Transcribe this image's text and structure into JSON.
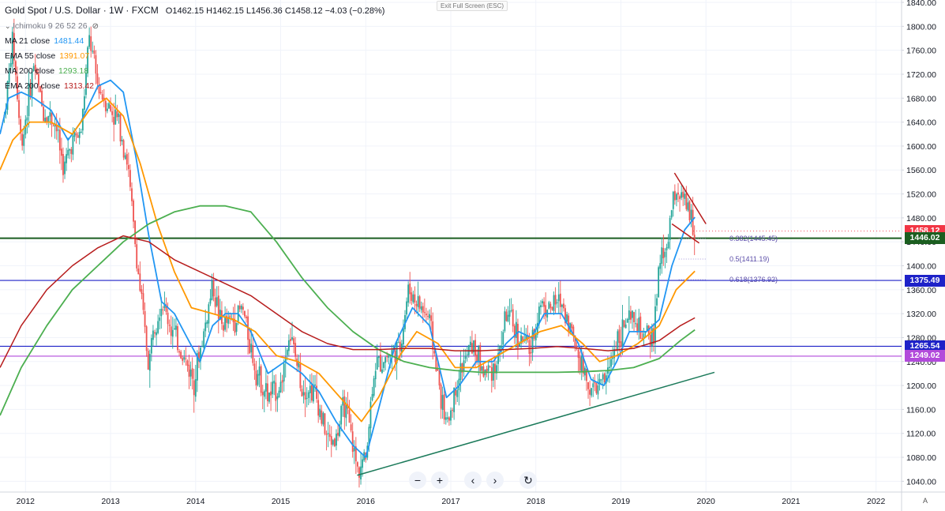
{
  "header": {
    "symbol": "Gold Spot / U.S. Dollar · 1W · FXCM",
    "ohlc": "O1462.15 H1462.15 L1456.36 C1458.12 −4.03 (−0.28%)"
  },
  "exit_fullscreen": "Exit Full Screen (ESC)",
  "legend": [
    {
      "label": "Ichimoku 9 26 52 26",
      "value": "",
      "color": "#787b86"
    },
    {
      "label": "MA 21 close",
      "value": "1481.44",
      "color": "#2196f3"
    },
    {
      "label": "EMA 55 close",
      "value": "1391.07",
      "color": "#ff9800"
    },
    {
      "label": "MA 200 close",
      "value": "1293.18",
      "color": "#4caf50"
    },
    {
      "label": "EMA 200 close",
      "value": "1313.42",
      "color": "#b71c1c"
    }
  ],
  "price_tags": [
    {
      "label": "1458.12",
      "price": 1458.12,
      "color": "#f23645"
    },
    {
      "label": "1446.02",
      "price": 1446.02,
      "color": "#1b5e20"
    },
    {
      "label": "1375.49",
      "price": 1375.49,
      "color": "#1e22c8"
    },
    {
      "label": "1265.54",
      "price": 1265.54,
      "color": "#1e22c8"
    },
    {
      "label": "1249.02",
      "price": 1249.02,
      "color": "#b24bdb"
    }
  ],
  "fib_labels": [
    {
      "label": "0.382(1445.45)",
      "price": 1445.45
    },
    {
      "label": "0.5(1411.19)",
      "price": 1411.19
    },
    {
      "label": "0.618(1376.92)",
      "price": 1376.92
    }
  ],
  "toolbar": {
    "zoom_out": "−",
    "zoom_in": "+",
    "back": "‹",
    "forward": "›",
    "reset": "↻"
  },
  "auto_label": "A",
  "colors": {
    "up": "#26a69a",
    "down": "#ef5350",
    "grid": "#f0f3fa",
    "axis_text": "#131722"
  },
  "chart_data": {
    "type": "candlestick",
    "title": "Gold Spot / U.S. Dollar · 1W · FXCM",
    "y_ticks": [
      1040,
      1080,
      1120,
      1160,
      1200,
      1240,
      1280,
      1320,
      1360,
      1400,
      1440,
      1480,
      1520,
      1560,
      1600,
      1640,
      1680,
      1720,
      1760,
      1800,
      1840
    ],
    "x_ticks": [
      "2012",
      "2013",
      "2014",
      "2015",
      "2016",
      "2017",
      "2018",
      "2019",
      "2020",
      "2021",
      "2022"
    ],
    "x_range": [
      2011.7,
      2022.3
    ],
    "y_range": [
      1022,
      1844
    ],
    "close_path": [
      [
        2011.75,
        1650
      ],
      [
        2011.85,
        1780
      ],
      [
        2011.95,
        1600
      ],
      [
        2012.1,
        1740
      ],
      [
        2012.2,
        1660
      ],
      [
        2012.35,
        1640
      ],
      [
        2012.45,
        1560
      ],
      [
        2012.55,
        1610
      ],
      [
        2012.65,
        1620
      ],
      [
        2012.75,
        1780
      ],
      [
        2012.85,
        1700
      ],
      [
        2013.0,
        1660
      ],
      [
        2013.1,
        1640
      ],
      [
        2013.2,
        1570
      ],
      [
        2013.3,
        1420
      ],
      [
        2013.45,
        1230
      ],
      [
        2013.5,
        1300
      ],
      [
        2013.6,
        1340
      ],
      [
        2013.7,
        1300
      ],
      [
        2013.85,
        1250
      ],
      [
        2013.98,
        1210
      ],
      [
        2014.1,
        1290
      ],
      [
        2014.2,
        1370
      ],
      [
        2014.3,
        1300
      ],
      [
        2014.45,
        1310
      ],
      [
        2014.55,
        1330
      ],
      [
        2014.7,
        1230
      ],
      [
        2014.85,
        1180
      ],
      [
        2015.0,
        1200
      ],
      [
        2015.1,
        1290
      ],
      [
        2015.25,
        1200
      ],
      [
        2015.4,
        1190
      ],
      [
        2015.55,
        1110
      ],
      [
        2015.65,
        1110
      ],
      [
        2015.75,
        1170
      ],
      [
        2015.9,
        1060
      ],
      [
        2016.0,
        1080
      ],
      [
        2016.1,
        1230
      ],
      [
        2016.25,
        1250
      ],
      [
        2016.4,
        1260
      ],
      [
        2016.5,
        1360
      ],
      [
        2016.6,
        1340
      ],
      [
        2016.75,
        1310
      ],
      [
        2016.85,
        1210
      ],
      [
        2016.95,
        1130
      ],
      [
        2017.1,
        1220
      ],
      [
        2017.25,
        1270
      ],
      [
        2017.4,
        1220
      ],
      [
        2017.55,
        1240
      ],
      [
        2017.65,
        1320
      ],
      [
        2017.8,
        1280
      ],
      [
        2017.95,
        1260
      ],
      [
        2018.05,
        1340
      ],
      [
        2018.15,
        1330
      ],
      [
        2018.3,
        1340
      ],
      [
        2018.4,
        1300
      ],
      [
        2018.55,
        1230
      ],
      [
        2018.65,
        1190
      ],
      [
        2018.75,
        1200
      ],
      [
        2018.85,
        1220
      ],
      [
        2018.95,
        1280
      ],
      [
        2019.05,
        1300
      ],
      [
        2019.15,
        1310
      ],
      [
        2019.25,
        1280
      ],
      [
        2019.38,
        1280
      ],
      [
        2019.45,
        1400
      ],
      [
        2019.55,
        1440
      ],
      [
        2019.6,
        1500
      ],
      [
        2019.65,
        1530
      ],
      [
        2019.72,
        1510
      ],
      [
        2019.8,
        1490
      ],
      [
        2019.87,
        1458
      ]
    ],
    "series": [
      {
        "name": "MA 21 close",
        "color": "#2196f3",
        "width": 1.8,
        "points": [
          [
            2011.7,
            1620
          ],
          [
            2011.8,
            1680
          ],
          [
            2011.95,
            1690
          ],
          [
            2012.1,
            1680
          ],
          [
            2012.3,
            1660
          ],
          [
            2012.5,
            1610
          ],
          [
            2012.65,
            1640
          ],
          [
            2012.85,
            1700
          ],
          [
            2013.0,
            1710
          ],
          [
            2013.15,
            1690
          ],
          [
            2013.3,
            1580
          ],
          [
            2013.45,
            1450
          ],
          [
            2013.6,
            1340
          ],
          [
            2013.75,
            1320
          ],
          [
            2013.9,
            1280
          ],
          [
            2014.05,
            1240
          ],
          [
            2014.2,
            1300
          ],
          [
            2014.35,
            1320
          ],
          [
            2014.5,
            1320
          ],
          [
            2014.65,
            1290
          ],
          [
            2014.85,
            1220
          ],
          [
            2015.05,
            1240
          ],
          [
            2015.25,
            1220
          ],
          [
            2015.45,
            1190
          ],
          [
            2015.65,
            1140
          ],
          [
            2015.85,
            1100
          ],
          [
            2016.0,
            1080
          ],
          [
            2016.15,
            1160
          ],
          [
            2016.35,
            1270
          ],
          [
            2016.55,
            1330
          ],
          [
            2016.75,
            1300
          ],
          [
            2016.95,
            1180
          ],
          [
            2017.1,
            1200
          ],
          [
            2017.3,
            1240
          ],
          [
            2017.5,
            1240
          ],
          [
            2017.65,
            1270
          ],
          [
            2017.8,
            1290
          ],
          [
            2017.95,
            1280
          ],
          [
            2018.1,
            1320
          ],
          [
            2018.3,
            1320
          ],
          [
            2018.5,
            1270
          ],
          [
            2018.65,
            1210
          ],
          [
            2018.8,
            1200
          ],
          [
            2018.95,
            1240
          ],
          [
            2019.1,
            1290
          ],
          [
            2019.3,
            1290
          ],
          [
            2019.45,
            1310
          ],
          [
            2019.6,
            1400
          ],
          [
            2019.75,
            1460
          ],
          [
            2019.87,
            1481
          ]
        ]
      },
      {
        "name": "EMA 55 close",
        "color": "#ff9800",
        "width": 1.8,
        "points": [
          [
            2011.7,
            1560
          ],
          [
            2011.85,
            1610
          ],
          [
            2012.05,
            1640
          ],
          [
            2012.3,
            1640
          ],
          [
            2012.55,
            1620
          ],
          [
            2012.75,
            1660
          ],
          [
            2012.95,
            1680
          ],
          [
            2013.15,
            1650
          ],
          [
            2013.35,
            1570
          ],
          [
            2013.55,
            1470
          ],
          [
            2013.75,
            1390
          ],
          [
            2013.95,
            1330
          ],
          [
            2014.2,
            1320
          ],
          [
            2014.45,
            1310
          ],
          [
            2014.7,
            1290
          ],
          [
            2014.95,
            1250
          ],
          [
            2015.2,
            1240
          ],
          [
            2015.45,
            1220
          ],
          [
            2015.7,
            1180
          ],
          [
            2015.95,
            1140
          ],
          [
            2016.15,
            1180
          ],
          [
            2016.4,
            1250
          ],
          [
            2016.6,
            1290
          ],
          [
            2016.85,
            1270
          ],
          [
            2017.05,
            1230
          ],
          [
            2017.3,
            1230
          ],
          [
            2017.55,
            1250
          ],
          [
            2017.8,
            1270
          ],
          [
            2018.05,
            1290
          ],
          [
            2018.3,
            1300
          ],
          [
            2018.55,
            1270
          ],
          [
            2018.75,
            1240
          ],
          [
            2018.95,
            1250
          ],
          [
            2019.2,
            1270
          ],
          [
            2019.45,
            1300
          ],
          [
            2019.65,
            1360
          ],
          [
            2019.87,
            1391
          ]
        ]
      },
      {
        "name": "MA 200 close",
        "color": "#4caf50",
        "width": 1.8,
        "points": [
          [
            2011.7,
            1150
          ],
          [
            2011.95,
            1230
          ],
          [
            2012.25,
            1300
          ],
          [
            2012.55,
            1360
          ],
          [
            2012.85,
            1400
          ],
          [
            2013.15,
            1440
          ],
          [
            2013.45,
            1470
          ],
          [
            2013.75,
            1490
          ],
          [
            2014.05,
            1500
          ],
          [
            2014.35,
            1500
          ],
          [
            2014.65,
            1490
          ],
          [
            2014.95,
            1440
          ],
          [
            2015.25,
            1380
          ],
          [
            2015.55,
            1330
          ],
          [
            2015.85,
            1290
          ],
          [
            2016.15,
            1260
          ],
          [
            2016.45,
            1240
          ],
          [
            2016.75,
            1230
          ],
          [
            2017.05,
            1225
          ],
          [
            2017.35,
            1222
          ],
          [
            2017.65,
            1222
          ],
          [
            2017.95,
            1222
          ],
          [
            2018.25,
            1222
          ],
          [
            2018.55,
            1223
          ],
          [
            2018.85,
            1225
          ],
          [
            2019.15,
            1230
          ],
          [
            2019.45,
            1245
          ],
          [
            2019.7,
            1275
          ],
          [
            2019.87,
            1293
          ]
        ]
      },
      {
        "name": "EMA 200 close",
        "color": "#b71c1c",
        "width": 1.5,
        "points": [
          [
            2011.7,
            1230
          ],
          [
            2011.95,
            1300
          ],
          [
            2012.25,
            1360
          ],
          [
            2012.55,
            1400
          ],
          [
            2012.85,
            1430
          ],
          [
            2013.15,
            1450
          ],
          [
            2013.45,
            1440
          ],
          [
            2013.75,
            1410
          ],
          [
            2014.05,
            1390
          ],
          [
            2014.35,
            1370
          ],
          [
            2014.65,
            1350
          ],
          [
            2014.95,
            1320
          ],
          [
            2015.25,
            1290
          ],
          [
            2015.55,
            1270
          ],
          [
            2015.85,
            1260
          ],
          [
            2016.15,
            1260
          ],
          [
            2016.45,
            1262
          ],
          [
            2016.75,
            1262
          ],
          [
            2017.05,
            1258
          ],
          [
            2017.35,
            1258
          ],
          [
            2017.65,
            1260
          ],
          [
            2017.95,
            1262
          ],
          [
            2018.25,
            1265
          ],
          [
            2018.55,
            1262
          ],
          [
            2018.85,
            1258
          ],
          [
            2019.15,
            1262
          ],
          [
            2019.45,
            1275
          ],
          [
            2019.7,
            1300
          ],
          [
            2019.87,
            1313
          ]
        ]
      }
    ],
    "trendlines": [
      {
        "name": "support-trendline",
        "color": "#1b7a5a",
        "from": [
          2015.9,
          1050
        ],
        "to": [
          2020.1,
          1222
        ]
      },
      {
        "name": "channel-upper",
        "color": "#b71c1c",
        "from": [
          2019.63,
          1555
        ],
        "to": [
          2020.0,
          1470
        ]
      },
      {
        "name": "channel-lower",
        "color": "#b71c1c",
        "from": [
          2019.6,
          1470
        ],
        "to": [
          2019.92,
          1438
        ]
      }
    ]
  }
}
